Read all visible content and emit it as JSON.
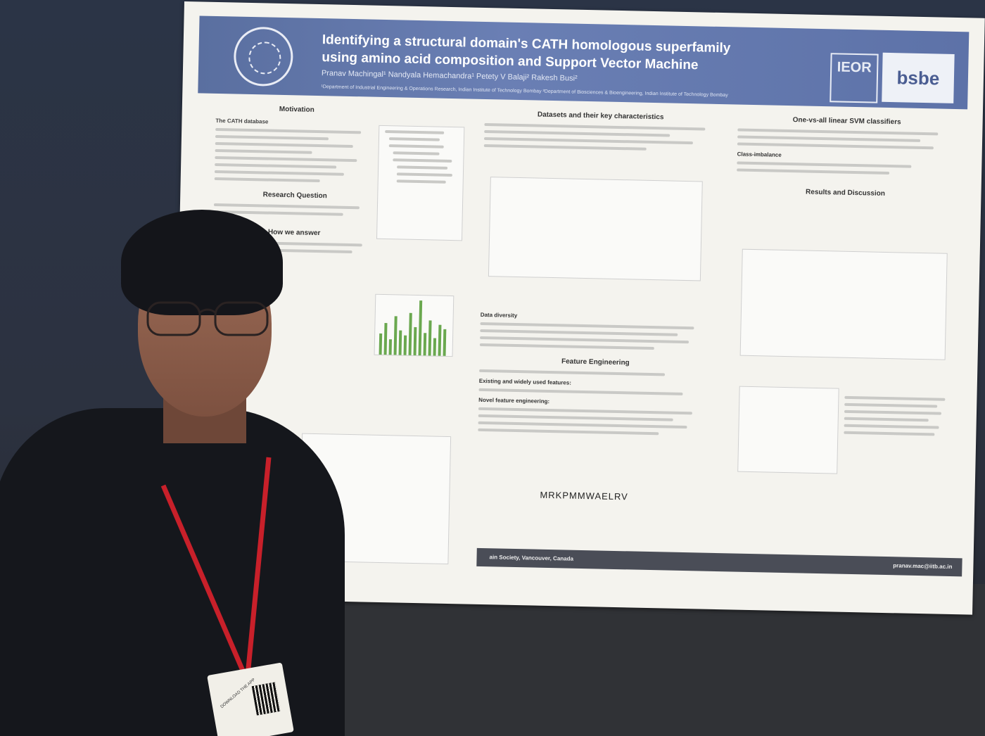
{
  "poster": {
    "title_line1": "Identifying a structural domain's CATH homologous superfamily",
    "title_line2": "using amino acid composition and Support Vector Machine",
    "authors": "Pranav Machingal¹   Nandyala Hemachandra¹   Petety V Balaji²   Rakesh Busi²",
    "affiliations": "¹Department of Industrial Engineering & Operations Research, Indian Institute of Technology Bombay     ²Department of Biosciences & Bioengineering, Indian Institute of Technology Bombay",
    "logo_right_1": "IEOR",
    "logo_right_2": "bsbe",
    "sections": {
      "motivation": "Motivation",
      "cath_database": "The CATH database",
      "research_question": "Research Question",
      "how_we_answer": "How we answer",
      "datasets": "Datasets and their key characteristics",
      "data_diversity": "Data diversity",
      "feature_engineering": "Feature Engineering",
      "existing_features": "Existing and widely used features:",
      "novel_features": "Novel feature engineering:",
      "svm": "One-vs-all linear SVM classifiers",
      "class_imbalance": "Class-imbalance",
      "results": "Results and Discussion"
    },
    "sequence_example": "MRKPMMWAELRV",
    "footer_left": "ain Society, Vancouver, Canada",
    "footer_right": "pranav.mac@iitb.ac.in"
  },
  "badge": {
    "text": "DOWNLOAD THE APP"
  }
}
